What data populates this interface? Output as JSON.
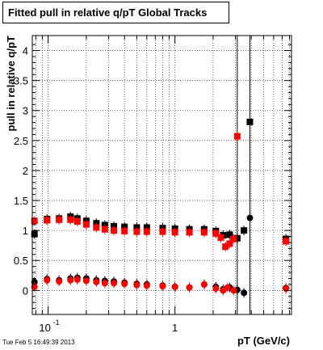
{
  "header": {
    "title": "Fitted pull in relative q/pT  Global Tracks",
    "timestamp": "Tue Feb  5 16:49:39 2013"
  },
  "chart_data": {
    "type": "scatter",
    "title": "Fitted pull in relative q/pT  Global Tracks",
    "xlabel": "pT (GeV/c)",
    "ylabel": "pull in relative q/pT",
    "xscale": "log",
    "xlim": [
      0.075,
      8.3
    ],
    "ylim": [
      -0.4,
      4.25
    ],
    "grid": true,
    "yticks": [
      0,
      0.5,
      1,
      1.5,
      2,
      2.5,
      3,
      3.5,
      4
    ],
    "ytick_labels": [
      "0",
      "0.5",
      "1",
      "1.5",
      "2",
      "2.5",
      "3",
      "3.5",
      "4"
    ],
    "xtick_labels": [
      {
        "value": 0.1,
        "base": "10",
        "exp": "-1"
      },
      {
        "value": 1,
        "base": "1",
        "exp": ""
      }
    ],
    "series": [
      {
        "color": "#000000",
        "points": [
          {
            "x": 0.078,
            "y": 0.94
          },
          {
            "x": 0.098,
            "y": 1.19
          },
          {
            "x": 0.122,
            "y": 1.2
          },
          {
            "x": 0.15,
            "y": 1.23
          },
          {
            "x": 0.17,
            "y": 1.2
          },
          {
            "x": 0.2,
            "y": 1.16
          },
          {
            "x": 0.24,
            "y": 1.12
          },
          {
            "x": 0.28,
            "y": 1.09
          },
          {
            "x": 0.33,
            "y": 1.07
          },
          {
            "x": 0.4,
            "y": 1.06
          },
          {
            "x": 0.5,
            "y": 1.05
          },
          {
            "x": 0.6,
            "y": 1.05
          },
          {
            "x": 0.8,
            "y": 1.04
          },
          {
            "x": 1.0,
            "y": 1.03
          },
          {
            "x": 1.3,
            "y": 1.02
          },
          {
            "x": 1.7,
            "y": 1.02
          },
          {
            "x": 2.1,
            "y": 0.99
          },
          {
            "x": 2.4,
            "y": 0.92
          },
          {
            "x": 2.7,
            "y": 0.93
          },
          {
            "x": 3.1,
            "y": 0.87
          },
          {
            "x": 3.5,
            "y": 1.0
          },
          {
            "x": 3.9,
            "y": 2.81
          },
          {
            "x": 7.5,
            "y": 0.86
          }
        ],
        "sigma": [
          {
            "x": 0.078,
            "y": 0.14
          },
          {
            "x": 0.098,
            "y": 0.19
          },
          {
            "x": 0.122,
            "y": 0.17
          },
          {
            "x": 0.15,
            "y": 0.2
          },
          {
            "x": 0.17,
            "y": 0.21
          },
          {
            "x": 0.2,
            "y": 0.2
          },
          {
            "x": 0.24,
            "y": 0.17
          },
          {
            "x": 0.28,
            "y": 0.16
          },
          {
            "x": 0.33,
            "y": 0.15
          },
          {
            "x": 0.4,
            "y": 0.13
          },
          {
            "x": 0.5,
            "y": 0.11
          },
          {
            "x": 0.6,
            "y": 0.1
          },
          {
            "x": 0.8,
            "y": 0.08
          },
          {
            "x": 1.0,
            "y": 0.06
          },
          {
            "x": 1.3,
            "y": 0.05
          },
          {
            "x": 1.7,
            "y": 0.1
          },
          {
            "x": 2.1,
            "y": 0.06
          },
          {
            "x": 2.4,
            "y": 0.02
          },
          {
            "x": 2.7,
            "y": 0.05
          },
          {
            "x": 3.1,
            "y": 0.01
          },
          {
            "x": 3.5,
            "y": -0.04
          },
          {
            "x": 3.9,
            "y": 1.21
          },
          {
            "x": 7.5,
            "y": 0.04
          }
        ]
      },
      {
        "color": "#ff0000",
        "points": [
          {
            "x": 0.078,
            "y": 1.16
          },
          {
            "x": 0.098,
            "y": 1.17
          },
          {
            "x": 0.122,
            "y": 1.18
          },
          {
            "x": 0.15,
            "y": 1.18
          },
          {
            "x": 0.17,
            "y": 1.15
          },
          {
            "x": 0.2,
            "y": 1.1
          },
          {
            "x": 0.24,
            "y": 1.05
          },
          {
            "x": 0.28,
            "y": 1.02
          },
          {
            "x": 0.33,
            "y": 1.0
          },
          {
            "x": 0.4,
            "y": 0.99
          },
          {
            "x": 0.5,
            "y": 0.98
          },
          {
            "x": 0.6,
            "y": 0.98
          },
          {
            "x": 0.8,
            "y": 0.98
          },
          {
            "x": 1.0,
            "y": 0.97
          },
          {
            "x": 1.3,
            "y": 0.97
          },
          {
            "x": 1.7,
            "y": 0.97
          },
          {
            "x": 2.1,
            "y": 0.95
          },
          {
            "x": 2.3,
            "y": 0.88
          },
          {
            "x": 2.5,
            "y": 0.73
          },
          {
            "x": 2.7,
            "y": 0.78
          },
          {
            "x": 2.9,
            "y": 0.86
          },
          {
            "x": 3.1,
            "y": 2.57
          },
          {
            "x": 7.5,
            "y": 0.82
          }
        ],
        "sigma": [
          {
            "x": 0.078,
            "y": 0.06
          },
          {
            "x": 0.098,
            "y": 0.17
          },
          {
            "x": 0.122,
            "y": 0.15
          },
          {
            "x": 0.15,
            "y": 0.17
          },
          {
            "x": 0.17,
            "y": 0.18
          },
          {
            "x": 0.2,
            "y": 0.16
          },
          {
            "x": 0.24,
            "y": 0.14
          },
          {
            "x": 0.28,
            "y": 0.12
          },
          {
            "x": 0.33,
            "y": 0.12
          },
          {
            "x": 0.4,
            "y": 0.11
          },
          {
            "x": 0.5,
            "y": 0.09
          },
          {
            "x": 0.6,
            "y": 0.08
          },
          {
            "x": 0.8,
            "y": 0.07
          },
          {
            "x": 1.0,
            "y": 0.06
          },
          {
            "x": 1.3,
            "y": 0.05
          },
          {
            "x": 1.7,
            "y": 0.1
          },
          {
            "x": 2.1,
            "y": 0.03
          },
          {
            "x": 2.4,
            "y": 0.0
          },
          {
            "x": 2.6,
            "y": 0.05
          },
          {
            "x": 2.9,
            "y": 0.0
          },
          {
            "x": 7.5,
            "y": 0.03
          }
        ]
      }
    ],
    "vertical_lines": [
      3.1,
      3.9
    ]
  }
}
